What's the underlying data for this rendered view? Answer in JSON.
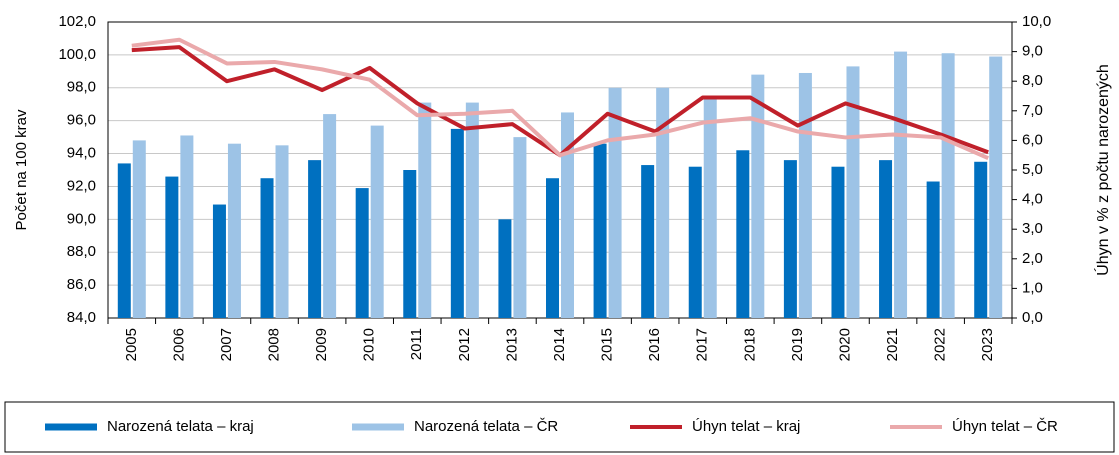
{
  "chart_data": {
    "type": "bar_line",
    "y_label": "Počet na 100 krav",
    "y2_label": "Úhyn v % z počtu narozených",
    "categories": [
      "2005",
      "2006",
      "2007",
      "2008",
      "2009",
      "2010",
      "2011",
      "2012",
      "2013",
      "2014",
      "2015",
      "2016",
      "2017",
      "2018",
      "2019",
      "2020",
      "2021",
      "2022",
      "2023"
    ],
    "series": [
      {
        "name": "Narozená telata – kraj",
        "type": "bar",
        "color": "#0070c0",
        "values": [
          93.4,
          92.6,
          90.9,
          92.5,
          93.6,
          91.9,
          93.0,
          95.5,
          90.0,
          92.5,
          94.6,
          93.3,
          93.2,
          94.2,
          93.6,
          93.2,
          93.6,
          92.3,
          93.5
        ]
      },
      {
        "name": "Narozená telata – ČR",
        "type": "bar",
        "color": "#9dc3e6",
        "values": [
          94.8,
          95.1,
          94.6,
          94.5,
          96.4,
          95.7,
          97.1,
          97.1,
          95.0,
          96.5,
          98.0,
          98.0,
          97.4,
          98.8,
          98.9,
          99.3,
          100.2,
          100.1,
          99.9
        ]
      },
      {
        "name": "Úhyn telat – kraj",
        "type": "line",
        "axis": "y2",
        "color": "#c0202a",
        "values": [
          9.05,
          9.15,
          8.0,
          8.4,
          7.7,
          8.45,
          7.25,
          6.4,
          6.55,
          5.5,
          6.9,
          6.3,
          7.45,
          7.45,
          6.5,
          7.25,
          6.75,
          6.2,
          5.6
        ]
      },
      {
        "name": "Úhyn telat – ČR",
        "type": "line",
        "axis": "y2",
        "color": "#eaa9ab",
        "values": [
          9.2,
          9.4,
          8.6,
          8.65,
          8.4,
          8.05,
          6.85,
          6.9,
          7.0,
          5.5,
          6.0,
          6.2,
          6.6,
          6.75,
          6.3,
          6.1,
          6.2,
          6.1,
          5.4
        ]
      }
    ],
    "ylim": [
      84,
      102
    ],
    "yticks": [
      {
        "value": 84,
        "label": "84,0"
      },
      {
        "value": 86,
        "label": "86,0"
      },
      {
        "value": 88,
        "label": "88,0"
      },
      {
        "value": 90,
        "label": "90,0"
      },
      {
        "value": 92,
        "label": "92,0"
      },
      {
        "value": 94,
        "label": "94,0"
      },
      {
        "value": 96,
        "label": "96,0"
      },
      {
        "value": 98,
        "label": "98,0"
      },
      {
        "value": 100,
        "label": "100,0"
      },
      {
        "value": 102,
        "label": "102,0"
      }
    ],
    "y2lim": [
      0,
      10
    ],
    "y2ticks": [
      {
        "value": 0,
        "label": "0,0"
      },
      {
        "value": 1,
        "label": "1,0"
      },
      {
        "value": 2,
        "label": "2,0"
      },
      {
        "value": 3,
        "label": "3,0"
      },
      {
        "value": 4,
        "label": "4,0"
      },
      {
        "value": 5,
        "label": "5,0"
      },
      {
        "value": 6,
        "label": "6,0"
      },
      {
        "value": 7,
        "label": "7,0"
      },
      {
        "value": 8,
        "label": "8,0"
      },
      {
        "value": 9,
        "label": "9,0"
      },
      {
        "value": 10,
        "label": "10,0"
      }
    ],
    "grid": true,
    "legend": "bottom"
  }
}
